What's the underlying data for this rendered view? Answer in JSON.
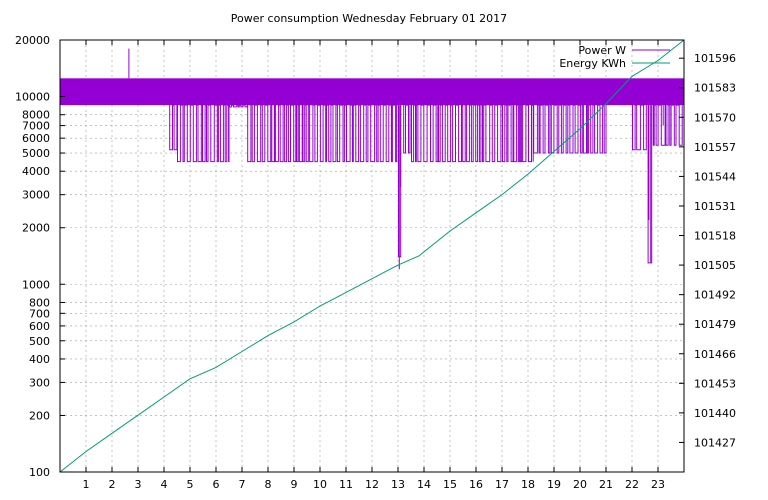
{
  "chart_data": {
    "type": "line",
    "title": "Power consumption Wednesday February 01 2017",
    "xlabel": "",
    "ylabel": "",
    "xlim": [
      0,
      24
    ],
    "ylim": [
      100,
      20000
    ],
    "y_scale": "log",
    "y2lim": [
      101414,
      101604
    ],
    "grid": true,
    "legend_position": "top-right",
    "x_ticks": [
      {
        "value": 1,
        "label": "1"
      },
      {
        "value": 2,
        "label": "2"
      },
      {
        "value": 3,
        "label": "3"
      },
      {
        "value": 4,
        "label": "4"
      },
      {
        "value": 5,
        "label": "5"
      },
      {
        "value": 6,
        "label": "6"
      },
      {
        "value": 7,
        "label": "7"
      },
      {
        "value": 8,
        "label": "8"
      },
      {
        "value": 9,
        "label": "9"
      },
      {
        "value": 10,
        "label": "10"
      },
      {
        "value": 11,
        "label": "11"
      },
      {
        "value": 12,
        "label": "12"
      },
      {
        "value": 13,
        "label": "13"
      },
      {
        "value": 14,
        "label": "14"
      },
      {
        "value": 15,
        "label": "15"
      },
      {
        "value": 16,
        "label": "16"
      },
      {
        "value": 17,
        "label": "17"
      },
      {
        "value": 18,
        "label": "18"
      },
      {
        "value": 19,
        "label": "19"
      },
      {
        "value": 20,
        "label": "20"
      },
      {
        "value": 21,
        "label": "21"
      },
      {
        "value": 22,
        "label": "22"
      },
      {
        "value": 23,
        "label": "23"
      }
    ],
    "y_ticks": [
      {
        "value": 100,
        "label": "100"
      },
      {
        "value": 200,
        "label": "200"
      },
      {
        "value": 300,
        "label": "300"
      },
      {
        "value": 400,
        "label": "400"
      },
      {
        "value": 500,
        "label": "500"
      },
      {
        "value": 600,
        "label": "600"
      },
      {
        "value": 700,
        "label": "700"
      },
      {
        "value": 800,
        "label": "800"
      },
      {
        "value": 1000,
        "label": "1000"
      },
      {
        "value": 2000,
        "label": "2000"
      },
      {
        "value": 3000,
        "label": "3000"
      },
      {
        "value": 4000,
        "label": "4000"
      },
      {
        "value": 5000,
        "label": "5000"
      },
      {
        "value": 6000,
        "label": "6000"
      },
      {
        "value": 7000,
        "label": "7000"
      },
      {
        "value": 8000,
        "label": "8000"
      },
      {
        "value": 10000,
        "label": "10000"
      },
      {
        "value": 20000,
        "label": "20000"
      }
    ],
    "y2_ticks": [
      {
        "value": 101427,
        "label": "101427"
      },
      {
        "value": 101440,
        "label": "101440"
      },
      {
        "value": 101453,
        "label": "101453"
      },
      {
        "value": 101466,
        "label": "101466"
      },
      {
        "value": 101479,
        "label": "101479"
      },
      {
        "value": 101492,
        "label": "101492"
      },
      {
        "value": 101505,
        "label": "101505"
      },
      {
        "value": 101518,
        "label": "101518"
      },
      {
        "value": 101531,
        "label": "101531"
      },
      {
        "value": 101544,
        "label": "101544"
      },
      {
        "value": 101557,
        "label": "101557"
      },
      {
        "value": 101570,
        "label": "101570"
      },
      {
        "value": 101583,
        "label": "101583"
      },
      {
        "value": 101596,
        "label": "101596"
      }
    ],
    "series": [
      {
        "name": "Power W",
        "axis": "y",
        "color": "#9400d3",
        "style": "oscillating",
        "base_level": 9000,
        "high_level": 12500,
        "regions": [
          {
            "start": 0.0,
            "end": 4.2,
            "low": 9000
          },
          {
            "start": 4.2,
            "end": 4.5,
            "low": 5200
          },
          {
            "start": 4.5,
            "end": 6.5,
            "low": 4500
          },
          {
            "start": 6.5,
            "end": 7.2,
            "low": 8800
          },
          {
            "start": 7.2,
            "end": 13.0,
            "low": 4500
          },
          {
            "start": 13.0,
            "end": 13.2,
            "low": 1400
          },
          {
            "start": 13.2,
            "end": 13.5,
            "low": 5000
          },
          {
            "start": 13.5,
            "end": 18.2,
            "low": 4500
          },
          {
            "start": 18.2,
            "end": 21.0,
            "low": 5000
          },
          {
            "start": 21.0,
            "end": 22.0,
            "low": 9000
          },
          {
            "start": 22.0,
            "end": 22.6,
            "low": 5200
          },
          {
            "start": 22.6,
            "end": 22.8,
            "low": 1300
          },
          {
            "start": 22.8,
            "end": 24.0,
            "low": 5500
          }
        ],
        "spikes": [
          {
            "x": 2.65,
            "value": 18000
          },
          {
            "x": 13.05,
            "value": 1200
          },
          {
            "x": 13.1,
            "value": 3300
          },
          {
            "x": 22.72,
            "value": 1300
          },
          {
            "x": 22.65,
            "value": 2200
          },
          {
            "x": 23.2,
            "value": 7000
          }
        ]
      },
      {
        "name": "Energy KWh",
        "axis": "y2",
        "color": "#009e73",
        "points": [
          [
            0.0,
            101414
          ],
          [
            1.0,
            101423
          ],
          [
            2.0,
            101431
          ],
          [
            3.0,
            101439
          ],
          [
            4.0,
            101447
          ],
          [
            5.0,
            101455
          ],
          [
            6.0,
            101460
          ],
          [
            7.0,
            101467
          ],
          [
            8.0,
            101474
          ],
          [
            9.0,
            101480
          ],
          [
            10.0,
            101487
          ],
          [
            11.0,
            101493
          ],
          [
            12.0,
            101499
          ],
          [
            13.0,
            101505
          ],
          [
            13.8,
            101509
          ],
          [
            15.0,
            101520
          ],
          [
            16.0,
            101528
          ],
          [
            17.0,
            101536
          ],
          [
            18.0,
            101545
          ],
          [
            19.0,
            101555
          ],
          [
            20.0,
            101565
          ],
          [
            21.0,
            101576
          ],
          [
            22.0,
            101588
          ],
          [
            23.0,
            101595
          ],
          [
            24.0,
            101604
          ]
        ]
      }
    ]
  }
}
